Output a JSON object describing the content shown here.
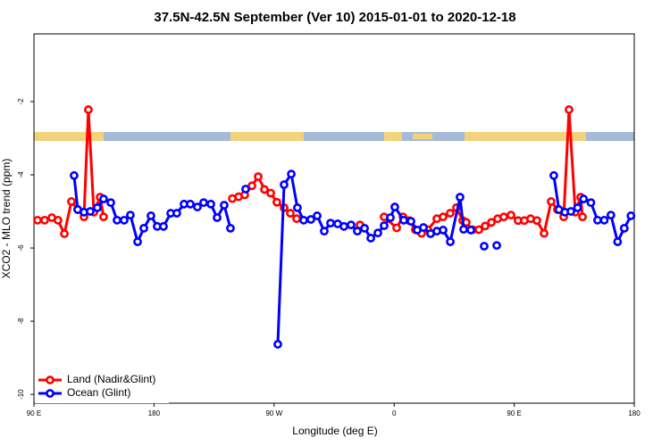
{
  "chart_data": {
    "type": "line",
    "title": "37.5N-42.5N September (Ver 10)   2015-01-01 to 2020-12-18",
    "x_label": "Longitude (deg E)",
    "y_label": "XCO2 - MLO trend (ppm)",
    "xlim": [
      90,
      540
    ],
    "xticks": [
      {
        "value": 90,
        "label": "90 E"
      },
      180,
      {
        "value": 270,
        "label": "90 W"
      },
      {
        "value": 360,
        "label": "0"
      },
      {
        "value": 450,
        "label": "90 E"
      },
      {
        "value": 540,
        "label": "180"
      }
    ],
    "ylim": [
      -10.24,
      -0.15
    ],
    "yticks": [
      -2,
      -4,
      -6,
      -8,
      -10
    ],
    "legend": "bottom left",
    "series": [
      {
        "name": "Land (Nadir&Glint)",
        "color": "#ff0000",
        "x": [
          92.7,
          98,
          103.4,
          108,
          112.8,
          118.1,
          122.8,
          127.5,
          130.8,
          134.9,
          139.6,
          142.2,
          143,
          238.7,
          243.4,
          248,
          253.4,
          258.1,
          262.8,
          267.5,
          272.1,
          277.5,
          282.2,
          286.9,
          290,
          334.4,
          340,
          352.5,
          361.9,
          366.6,
          371.3,
          375.9,
          380.6,
          385.3,
          392,
          396.7,
          402,
          406.7,
          411.4,
          414.1,
          418.8,
          423.5,
          428.2,
          432.9,
          437.6,
          442.2,
          447.6,
          452.9,
          457.6,
          462.3,
          467,
          472.4,
          477.7,
          482.4,
          487.1,
          491.1,
          495.8,
          499.8,
          501.2
        ],
        "values": [
          -5.24,
          -5.24,
          -5.17,
          -5.24,
          -5.61,
          -4.73,
          -4.95,
          -5.15,
          -2.22,
          -5.02,
          -4.61,
          -5.15,
          null,
          -4.65,
          -4.6,
          -4.55,
          -4.3,
          -4.05,
          -4.4,
          -4.5,
          -4.75,
          -4.9,
          -5.05,
          -5.2,
          null,
          -5.37,
          null,
          -5.15,
          -5.45,
          -5.15,
          -5.25,
          -5.5,
          -5.6,
          -5.5,
          -5.2,
          -5.15,
          -5.05,
          -4.9,
          -5.25,
          -5.3,
          -5.5,
          -5.5,
          -5.4,
          -5.3,
          -5.2,
          -5.15,
          -5.1,
          -5.25,
          -5.25,
          -5.2,
          -5.25,
          -5.6,
          -4.73,
          -4.95,
          -5.15,
          -2.22,
          -5.02,
          -4.61,
          -5.15
        ]
      },
      {
        "name": "Ocean (Glint)",
        "color": "#0000ff",
        "x": [
          120.1,
          122.8,
          127.5,
          132.2,
          137.5,
          142.2,
          147.6,
          152.3,
          157.6,
          162.3,
          167.7,
          172.4,
          177.7,
          182.4,
          187.1,
          192.5,
          197.1,
          202.5,
          207.2,
          212.5,
          217.2,
          222.6,
          227.3,
          232.6,
          237.3,
          240,
          248.7,
          250,
          272.8,
          277.5,
          282.9,
          287.5,
          292.2,
          297.6,
          302.3,
          307.6,
          312.3,
          317.7,
          322.4,
          327.7,
          332.4,
          337.8,
          342.5,
          347.8,
          352.5,
          357.2,
          360.5,
          367.2,
          372.6,
          377.3,
          382,
          387.3,
          392,
          396.7,
          402.1,
          409.4,
          412.1,
          417.5,
          420,
          427.5,
          430,
          436.9,
          440,
          479.7,
          483.5,
          488,
          492.5,
          497.5,
          502,
          507.5,
          512.5,
          517.5,
          522.5,
          527.5,
          532.5,
          537.5
        ],
        "values": [
          -4.02,
          -4.95,
          -5.02,
          -5.0,
          -4.9,
          -4.66,
          -4.76,
          -5.24,
          -5.24,
          -5.1,
          -5.83,
          -5.46,
          -5.12,
          -5.41,
          -5.41,
          -5.05,
          -5.05,
          -4.8,
          -4.8,
          -4.88,
          -4.76,
          -4.8,
          -5.17,
          -4.83,
          -5.46,
          null,
          -4.39,
          null,
          -8.63,
          -4.27,
          -3.98,
          -4.9,
          -5.24,
          -5.22,
          -5.12,
          -5.54,
          -5.32,
          -5.34,
          -5.41,
          -5.37,
          -5.54,
          -5.46,
          -5.73,
          -5.59,
          -5.39,
          -5.17,
          -4.88,
          -5.24,
          -5.27,
          -5.51,
          -5.44,
          -5.61,
          -5.54,
          -5.51,
          -5.83,
          -4.61,
          -5.49,
          -5.51,
          null,
          -5.95,
          null,
          -5.93,
          null,
          -4.02,
          -4.95,
          -5.02,
          -5.0,
          -4.9,
          -4.66,
          -4.76,
          -5.24,
          -5.24,
          -5.1,
          -5.83,
          -5.46,
          -5.12
        ]
      }
    ]
  }
}
